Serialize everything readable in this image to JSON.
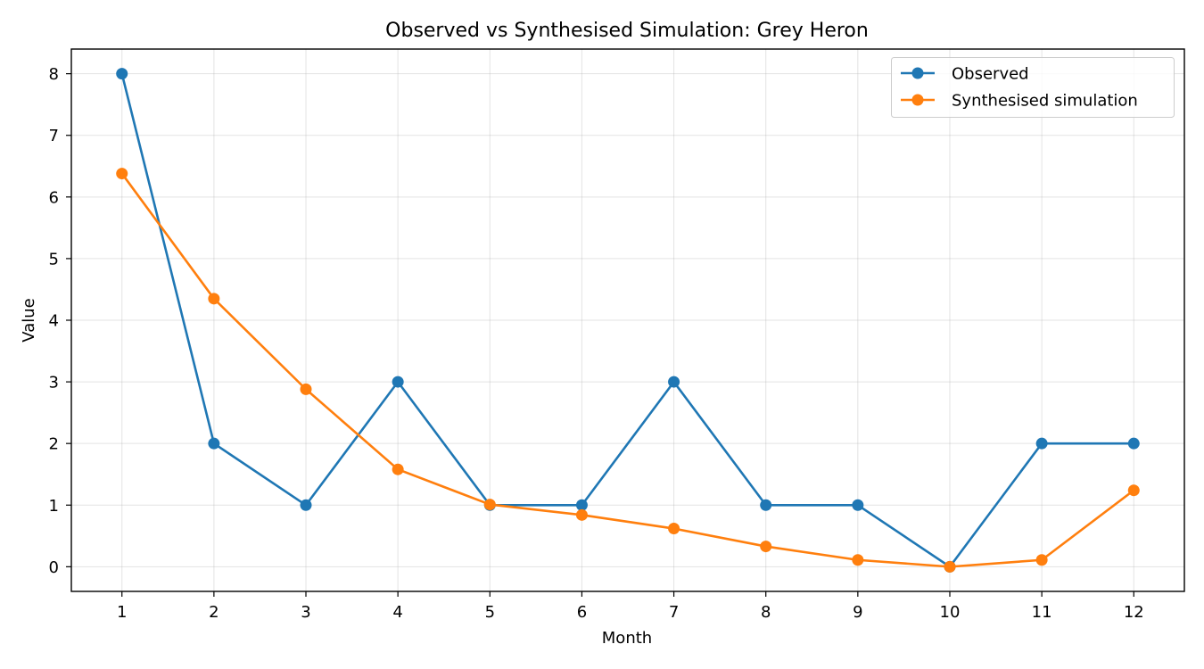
{
  "chart_data": {
    "type": "line",
    "title": "Observed vs Synthesised Simulation: Grey Heron",
    "xlabel": "Month",
    "ylabel": "Value",
    "x": [
      1,
      2,
      3,
      4,
      5,
      6,
      7,
      8,
      9,
      10,
      11,
      12
    ],
    "xticks": [
      "1",
      "2",
      "3",
      "4",
      "5",
      "6",
      "7",
      "8",
      "9",
      "10",
      "11",
      "12"
    ],
    "yticks": [
      "0",
      "1",
      "2",
      "3",
      "4",
      "5",
      "6",
      "7",
      "8"
    ],
    "xlim": [
      0.45,
      12.55
    ],
    "ylim": [
      -0.4,
      8.4
    ],
    "grid": true,
    "legend_position": "top-right",
    "series": [
      {
        "name": "Observed",
        "color": "#1f77b4",
        "marker": "circle",
        "values": [
          8,
          2,
          1,
          3,
          1,
          1,
          3,
          1,
          1,
          0,
          2,
          2
        ]
      },
      {
        "name": "Synthesised simulation",
        "color": "#ff7f0e",
        "marker": "circle",
        "values": [
          6.38,
          4.35,
          2.88,
          1.58,
          1.01,
          0.84,
          0.62,
          0.33,
          0.11,
          0.0,
          0.11,
          1.24
        ]
      }
    ]
  }
}
